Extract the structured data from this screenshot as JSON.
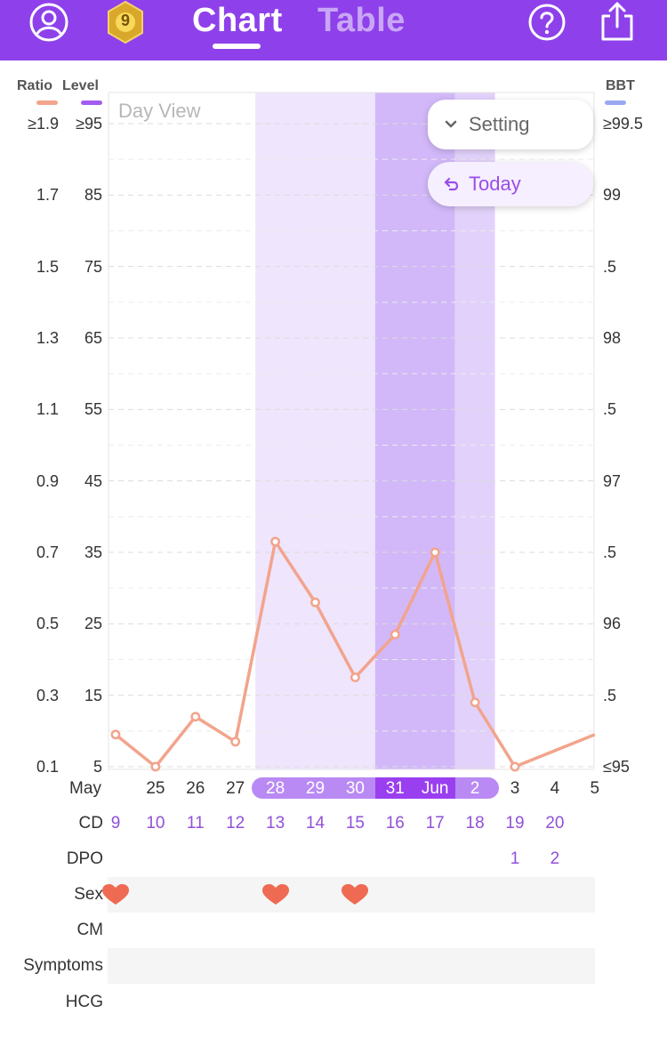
{
  "header": {
    "tabs": [
      {
        "label": "Chart"
      },
      {
        "label": "Table"
      }
    ],
    "badge_number": "9",
    "icons": {
      "left": "profile-icon",
      "badge": "medal-badge-icon",
      "help": "help-icon",
      "share": "share-icon"
    }
  },
  "legend": {
    "ratio": {
      "label": "Ratio",
      "color": "#f2a48c"
    },
    "level": {
      "label": "Level",
      "color": "#a35cf0"
    },
    "bbt": {
      "label": "BBT",
      "color": "#9aa8ef"
    }
  },
  "axes": {
    "ratio_ticks": [
      "≥1.9",
      "1.7",
      "1.5",
      "1.3",
      "1.1",
      "0.9",
      "0.7",
      "0.5",
      "0.3",
      "0.1"
    ],
    "level_ticks": [
      "≥95",
      "85",
      "75",
      "65",
      "55",
      "45",
      "35",
      "25",
      "15",
      "5"
    ],
    "bbt_ticks": [
      "≥99.5",
      "99",
      ".5",
      "98",
      ".5",
      "97",
      ".5",
      "96",
      ".5",
      "≤95"
    ]
  },
  "controls": {
    "day_view": "Day View",
    "setting_label": "Setting",
    "today_label": "Today"
  },
  "chart_data": {
    "type": "line",
    "x_labels": [
      "May",
      "25",
      "26",
      "27",
      "28",
      "29",
      "30",
      "31",
      "Jun",
      "2",
      "3",
      "4",
      "5"
    ],
    "series": [
      {
        "name": "Ratio",
        "color": "#f2a48c",
        "values": [
          0.19,
          0.1,
          0.24,
          0.17,
          0.73,
          0.56,
          0.35,
          0.47,
          0.7,
          0.28,
          0.1,
          null,
          0.19
        ]
      }
    ],
    "ylim": [
      0.1,
      1.9
    ],
    "fertile_window_days": [
      "28",
      "29",
      "30",
      "31",
      "Jun",
      "2"
    ],
    "peak_days": [
      "31",
      "Jun"
    ],
    "grid": true
  },
  "rows": {
    "cd": {
      "label": "CD",
      "values": [
        "9",
        "10",
        "11",
        "12",
        "13",
        "14",
        "15",
        "16",
        "17",
        "18",
        "19",
        "20",
        ""
      ]
    },
    "dpo": {
      "label": "DPO",
      "values": [
        "",
        "",
        "",
        "",
        "",
        "",
        "",
        "",
        "",
        "",
        "1",
        "2",
        ""
      ]
    },
    "sex": {
      "label": "Sex",
      "days_with_heart": [
        0,
        4,
        6
      ]
    },
    "cm": {
      "label": "CM"
    },
    "symptoms": {
      "label": "Symptoms"
    },
    "hcg": {
      "label": "HCG"
    }
  },
  "colors": {
    "header": "#8e41ea",
    "fertile_light": "#efe5fd",
    "fertile_mid": "#e2d2fb",
    "peak": "#d2b8f8",
    "heart": "#ef6a52"
  }
}
